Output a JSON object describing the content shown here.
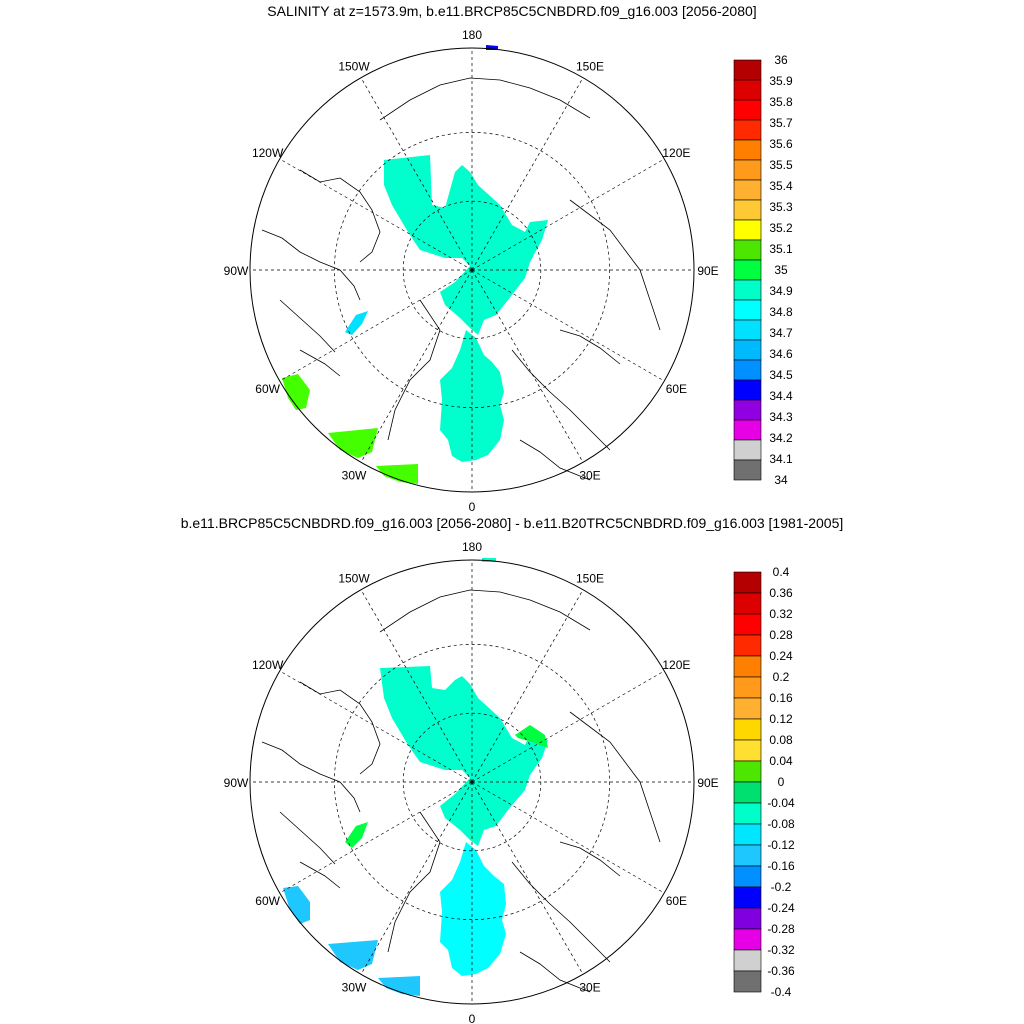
{
  "panels": [
    {
      "title": "SALINITY at z=1573.9m, b.e11.BRCP85C5CNBDRD.f09_g16.003 [2056-2080]",
      "lon_labels": [
        "180",
        "150E",
        "120E",
        "90E",
        "60E",
        "30E",
        "0",
        "30W",
        "60W",
        "90W",
        "120W",
        "150W"
      ],
      "colorbar": {
        "labels": [
          "36",
          "35.9",
          "35.8",
          "35.7",
          "35.6",
          "35.5",
          "35.4",
          "35.3",
          "35.2",
          "35.1",
          "35",
          "34.9",
          "34.8",
          "34.7",
          "34.6",
          "34.5",
          "34.4",
          "34.3",
          "34.2",
          "34.1",
          "34"
        ],
        "colors": [
          "#b40000",
          "#dc0000",
          "#ff0000",
          "#ff2a00",
          "#ff8000",
          "#ff9a1a",
          "#ffb030",
          "#ffc835",
          "#ffff00",
          "#4ce600",
          "#00ff40",
          "#00ffc8",
          "#00ffff",
          "#00e0ff",
          "#00baff",
          "#0090ff",
          "#0000ff",
          "#9000e0",
          "#e600e6",
          "#d0d0d0",
          "#707070"
        ]
      },
      "regions": [
        {
          "name": "arctic-basin",
          "color": "#00ffcc"
        },
        {
          "name": "fram-strait-nordic-seas",
          "color": "#00ffcc"
        },
        {
          "name": "baffin-bay",
          "color": "#00e0ff"
        },
        {
          "name": "labrador-sea",
          "color": "#44ff00"
        },
        {
          "name": "north-atlantic-west",
          "color": "#44ff00"
        },
        {
          "name": "north-atlantic-east",
          "color": "#44ff00"
        },
        {
          "name": "bering-patch",
          "color": "#0000ff"
        }
      ]
    },
    {
      "title": "b.e11.BRCP85C5CNBDRD.f09_g16.003 [2056-2080] - b.e11.B20TRC5CNBDRD.f09_g16.003 [1981-2005]",
      "lon_labels": [
        "180",
        "150E",
        "120E",
        "90E",
        "60E",
        "30E",
        "0",
        "30W",
        "60W",
        "90W",
        "120W",
        "150W"
      ],
      "colorbar": {
        "labels": [
          "0.4",
          "0.36",
          "0.32",
          "0.28",
          "0.24",
          "0.2",
          "0.16",
          "0.12",
          "0.08",
          "0.04",
          "0",
          "-0.04",
          "-0.08",
          "-0.12",
          "-0.16",
          "-0.2",
          "-0.24",
          "-0.28",
          "-0.32",
          "-0.36",
          "-0.4"
        ],
        "colors": [
          "#b40000",
          "#dc0000",
          "#ff0000",
          "#ff2a00",
          "#ff8000",
          "#ff9a1a",
          "#ffb030",
          "#ffd700",
          "#ffe030",
          "#4ce600",
          "#00e070",
          "#00ffc8",
          "#00e6ff",
          "#1ec8ff",
          "#0090ff",
          "#0000ff",
          "#8000e0",
          "#e600e6",
          "#d0d0d0",
          "#707070"
        ]
      },
      "regions": [
        {
          "name": "arctic-basin",
          "color": "#00ffcc"
        },
        {
          "name": "fram-strait-nordic-seas",
          "color": "#00ffff"
        },
        {
          "name": "barents-edge",
          "color": "#00ff40"
        },
        {
          "name": "baffin-bay",
          "color": "#00ff40"
        },
        {
          "name": "labrador-sea",
          "color": "#1ec8ff"
        },
        {
          "name": "north-atlantic-west",
          "color": "#1ec8ff"
        },
        {
          "name": "north-atlantic-east",
          "color": "#1ec8ff"
        },
        {
          "name": "bering-patch",
          "color": "#00ffcc"
        }
      ]
    }
  ]
}
